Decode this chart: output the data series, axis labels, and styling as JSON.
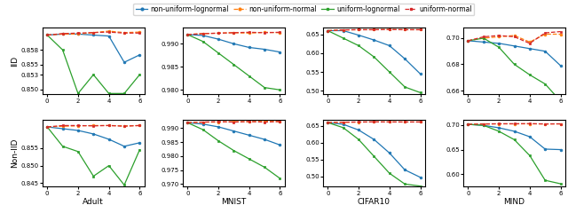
{
  "x": [
    0,
    1,
    2,
    3,
    4,
    5,
    6
  ],
  "series_labels": [
    "non-uniform-lognormal",
    "non-uniform-normal",
    "uniform-lognormal",
    "uniform-normal"
  ],
  "series_colors": [
    "#1f77b4",
    "#ff7f0e",
    "#2ca02c",
    "#d62728"
  ],
  "series_markers": [
    "o",
    "o",
    "s",
    "s"
  ],
  "series_linestyles": [
    "-",
    "--",
    "-",
    "--"
  ],
  "datasets": [
    "Adult",
    "MNIST",
    "CIFAR10",
    "MIND"
  ],
  "row_labels": [
    "IID",
    "Non-IID"
  ],
  "iid": {
    "Adult": {
      "non-uniform-lognormal": [
        0.861,
        0.8612,
        0.8612,
        0.861,
        0.8608,
        0.8555,
        0.857
      ],
      "non-uniform-normal": [
        0.861,
        0.8612,
        0.8612,
        0.8615,
        0.8618,
        0.8615,
        0.8616
      ],
      "uniform-lognormal": [
        0.861,
        0.858,
        0.8492,
        0.853,
        0.8492,
        0.8492,
        0.853
      ],
      "uniform-normal": [
        0.861,
        0.8613,
        0.8614,
        0.8615,
        0.8616,
        0.8614,
        0.8614
      ],
      "ylim": [
        0.849,
        0.8625
      ],
      "yticks": [
        0.85,
        0.853,
        0.855,
        0.858
      ]
    },
    "MNIST": {
      "non-uniform-lognormal": [
        0.992,
        0.9918,
        0.991,
        0.99,
        0.9892,
        0.9888,
        0.9882
      ],
      "non-uniform-normal": [
        0.992,
        0.9922,
        0.9923,
        0.9924,
        0.9923,
        0.9925,
        0.9924
      ],
      "uniform-lognormal": [
        0.992,
        0.9905,
        0.988,
        0.9855,
        0.983,
        0.9805,
        0.98
      ],
      "uniform-normal": [
        0.992,
        0.9922,
        0.9923,
        0.9924,
        0.9925,
        0.9924,
        0.9925
      ],
      "ylim": [
        0.979,
        0.9935
      ],
      "yticks": [
        0.98,
        0.985,
        0.99
      ]
    },
    "CIFAR10": {
      "non-uniform-lognormal": [
        0.66,
        0.66,
        0.648,
        0.635,
        0.62,
        0.585,
        0.545
      ],
      "non-uniform-normal": [
        0.66,
        0.662,
        0.6625,
        0.6625,
        0.663,
        0.6625,
        0.6625
      ],
      "uniform-lognormal": [
        0.66,
        0.64,
        0.62,
        0.59,
        0.55,
        0.51,
        0.495
      ],
      "uniform-normal": [
        0.66,
        0.662,
        0.6625,
        0.6625,
        0.6628,
        0.6625,
        0.6625
      ],
      "ylim": [
        0.49,
        0.668
      ],
      "yticks": [
        0.5,
        0.55,
        0.6,
        0.65
      ]
    },
    "MIND": {
      "non-uniform-lognormal": [
        0.698,
        0.697,
        0.696,
        0.694,
        0.692,
        0.69,
        0.679
      ],
      "non-uniform-normal": [
        0.698,
        0.7,
        0.701,
        0.702,
        0.697,
        0.703,
        0.703
      ],
      "uniform-lognormal": [
        0.698,
        0.7,
        0.693,
        0.68,
        0.672,
        0.665,
        0.652
      ],
      "uniform-normal": [
        0.698,
        0.701,
        0.702,
        0.701,
        0.696,
        0.704,
        0.705
      ],
      "ylim": [
        0.657,
        0.708
      ],
      "yticks": [
        0.66,
        0.68,
        0.7
      ]
    }
  },
  "non_iid": {
    "Adult": {
      "non-uniform-lognormal": [
        0.861,
        0.8605,
        0.86,
        0.859,
        0.8575,
        0.8555,
        0.8565
      ],
      "non-uniform-normal": [
        0.861,
        0.8612,
        0.8613,
        0.8614,
        0.8614,
        0.8613,
        0.8614
      ],
      "uniform-lognormal": [
        0.861,
        0.8555,
        0.854,
        0.847,
        0.85,
        0.8445,
        0.8545
      ],
      "uniform-normal": [
        0.861,
        0.8614,
        0.8614,
        0.8613,
        0.8614,
        0.8612,
        0.8614
      ],
      "ylim": [
        0.844,
        0.863
      ],
      "yticks": [
        0.845,
        0.85,
        0.855
      ]
    },
    "MNIST": {
      "non-uniform-lognormal": [
        0.992,
        0.9915,
        0.9905,
        0.989,
        0.9875,
        0.986,
        0.984
      ],
      "non-uniform-normal": [
        0.992,
        0.9922,
        0.9922,
        0.9924,
        0.9923,
        0.9925,
        0.9924
      ],
      "uniform-lognormal": [
        0.992,
        0.9895,
        0.9855,
        0.982,
        0.979,
        0.976,
        0.972
      ],
      "uniform-normal": [
        0.992,
        0.9922,
        0.9924,
        0.9922,
        0.9924,
        0.9922,
        0.9924
      ],
      "ylim": [
        0.969,
        0.993
      ],
      "yticks": [
        0.97,
        0.975,
        0.98,
        0.985,
        0.99
      ]
    },
    "CIFAR10": {
      "non-uniform-lognormal": [
        0.66,
        0.655,
        0.638,
        0.61,
        0.57,
        0.52,
        0.498
      ],
      "non-uniform-normal": [
        0.66,
        0.661,
        0.6615,
        0.662,
        0.662,
        0.6618,
        0.6618
      ],
      "uniform-lognormal": [
        0.66,
        0.645,
        0.61,
        0.56,
        0.51,
        0.478,
        0.472
      ],
      "uniform-normal": [
        0.66,
        0.6612,
        0.6618,
        0.662,
        0.6618,
        0.6618,
        0.6618
      ],
      "ylim": [
        0.47,
        0.668
      ],
      "yticks": [
        0.5,
        0.55,
        0.6,
        0.65
      ]
    },
    "MIND": {
      "non-uniform-lognormal": [
        0.701,
        0.699,
        0.694,
        0.687,
        0.676,
        0.651,
        0.65
      ],
      "non-uniform-normal": [
        0.701,
        0.7015,
        0.702,
        0.702,
        0.702,
        0.7018,
        0.702
      ],
      "uniform-lognormal": [
        0.701,
        0.699,
        0.687,
        0.67,
        0.638,
        0.588,
        0.581
      ],
      "uniform-normal": [
        0.701,
        0.7018,
        0.7022,
        0.7022,
        0.7025,
        0.7018,
        0.702
      ],
      "ylim": [
        0.575,
        0.71
      ],
      "yticks": [
        0.6,
        0.65,
        0.7
      ]
    }
  }
}
